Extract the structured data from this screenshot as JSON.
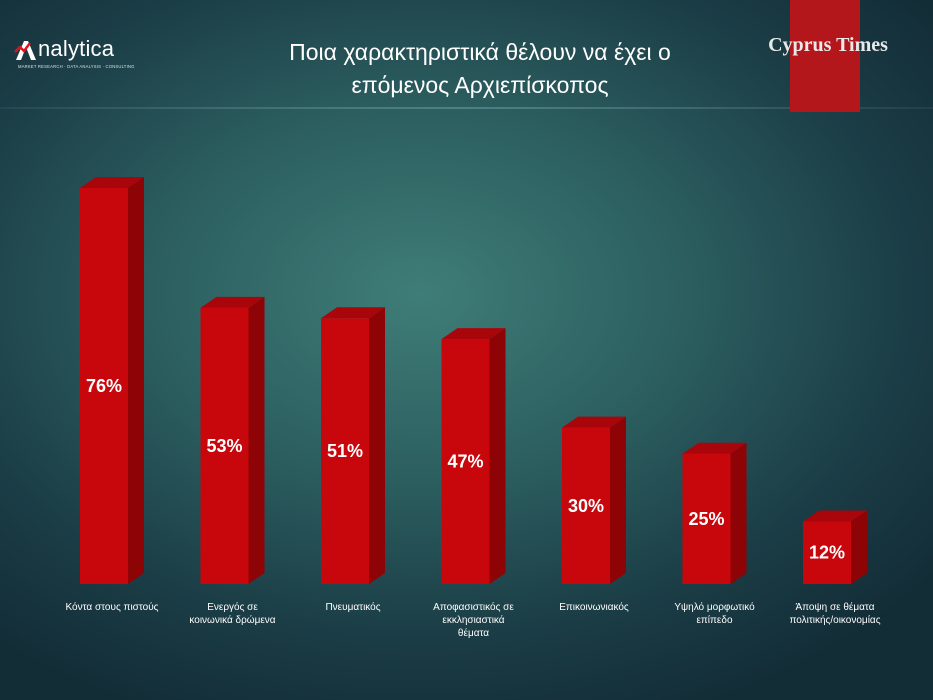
{
  "header": {
    "logo_text": "nalytica",
    "logo_tagline": "MARKET RESEARCH · DATA ANALYSIS · CONSULTING",
    "title": "Ποια χαρακτηριστικά θέλουν να έχει ο\nεπόμενος Αρχιεπίσκοπος",
    "brand": "Cyprus Times"
  },
  "colors": {
    "bar": "#c8070c",
    "brand_bar": "#b3161b"
  },
  "chart_data": {
    "type": "bar",
    "categories": [
      "Κόντα στους πιστούς",
      "Ενεργός σε κοινωνικά δρώμενα",
      "Πνευματικός",
      "Αποφασιστικός σε εκκλησιαστικά θέματα",
      "Επικοινωνιακός",
      "Υψηλό μορφωτικό επίπεδο",
      "Άποψη σε θέματα πολιτικής/οικονομίας"
    ],
    "category_lines": [
      [
        "Κόντα στους πιστούς"
      ],
      [
        "Ενεργός σε",
        "κοινωνικά δρώμενα"
      ],
      [
        "Πνευματικός"
      ],
      [
        "Αποφασιστικός σε",
        "εκκλησιαστικά",
        "θέματα"
      ],
      [
        "Επικοινωνιακός"
      ],
      [
        "Υψηλό μορφωτικό",
        "επίπεδο"
      ],
      [
        "Άποψη σε θέματα",
        "πολιτικής/οικονομίας"
      ]
    ],
    "values": [
      76,
      53,
      51,
      47,
      30,
      25,
      12
    ],
    "value_labels": [
      "76%",
      "53%",
      "51%",
      "47%",
      "30%",
      "25%",
      "12%"
    ],
    "ylim": [
      0,
      76
    ],
    "grid": false,
    "legend": "none"
  }
}
